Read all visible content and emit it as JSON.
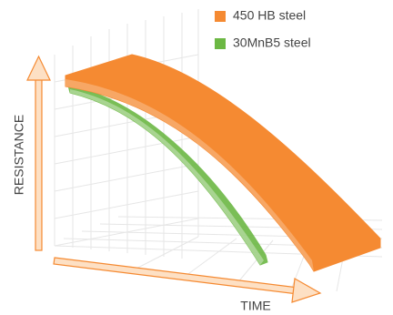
{
  "legend": {
    "items": [
      {
        "label": "450 HB steel",
        "color": "#f58a32"
      },
      {
        "label": "30MnB5 steel",
        "color": "#6cb844"
      }
    ]
  },
  "axes": {
    "y_label": "RESISTANCE",
    "x_label": "TIME"
  }
}
